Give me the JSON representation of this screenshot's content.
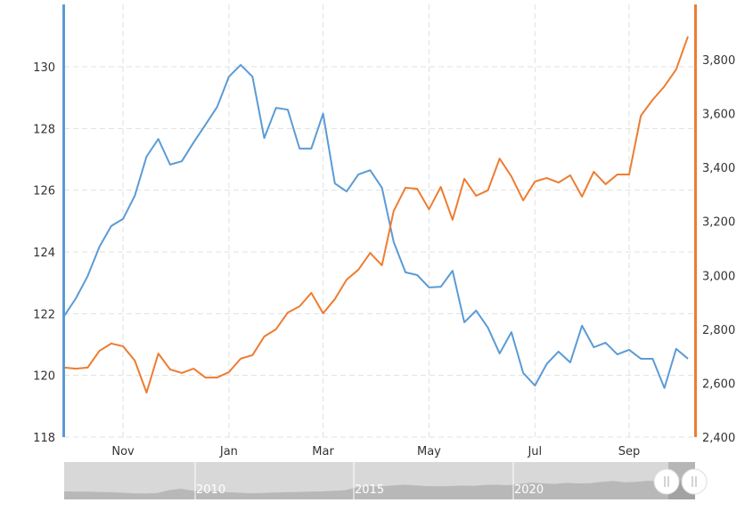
{
  "chart_data": {
    "type": "line",
    "title": "",
    "x_labels": [
      "Nov",
      "Jan",
      "Mar",
      "May",
      "Jul",
      "Sep"
    ],
    "x_label_index": [
      5,
      14,
      22,
      31,
      40,
      48
    ],
    "left_axis": {
      "ylim": [
        118,
        131.5
      ],
      "ticks": [
        "118",
        "120",
        "122",
        "124",
        "126",
        "128",
        "130"
      ],
      "tick_values": [
        118,
        120,
        122,
        124,
        126,
        128,
        130
      ],
      "color": "#5b9bd5"
    },
    "right_axis": {
      "ylim": [
        2400,
        3950
      ],
      "ticks": [
        "2,400",
        "2,600",
        "2,800",
        "3,000",
        "3,200",
        "3,400",
        "3,600",
        "3,800"
      ],
      "tick_values": [
        2400,
        2600,
        2800,
        3000,
        3200,
        3400,
        3600,
        3800
      ],
      "color": "#ed7d31"
    },
    "grid": true,
    "series": [
      {
        "name": "blue",
        "axis": "left",
        "color": "#5b9bd5",
        "values": [
          121.92,
          122.5,
          123.22,
          124.17,
          124.84,
          125.07,
          125.82,
          127.09,
          127.66,
          126.83,
          126.94,
          127.55,
          128.12,
          128.7,
          129.68,
          130.06,
          129.68,
          127.69,
          128.67,
          128.61,
          127.35,
          127.35,
          128.48,
          126.22,
          125.96,
          126.51,
          126.65,
          126.08,
          124.32,
          123.34,
          123.25,
          122.85,
          122.87,
          123.39,
          121.72,
          122.1,
          121.55,
          120.71,
          121.4,
          120.08,
          119.67,
          120.37,
          120.77,
          120.42,
          121.61,
          120.91,
          121.06,
          120.68,
          120.83,
          120.54,
          120.54,
          119.59,
          120.86,
          120.54
        ]
      },
      {
        "name": "orange",
        "axis": "right",
        "color": "#ed7d31",
        "values": [
          2658,
          2654,
          2658,
          2720,
          2747,
          2737,
          2684,
          2565,
          2710,
          2651,
          2638,
          2654,
          2621,
          2621,
          2641,
          2691,
          2704,
          2773,
          2800,
          2862,
          2885,
          2935,
          2859,
          2912,
          2984,
          3021,
          3083,
          3037,
          3239,
          3325,
          3321,
          3245,
          3328,
          3206,
          3358,
          3295,
          3315,
          3433,
          3367,
          3278,
          3348,
          3361,
          3344,
          3371,
          3292,
          3384,
          3338,
          3374,
          3374,
          3592,
          3651,
          3701,
          3764,
          3886
        ]
      }
    ],
    "navigator": {
      "year_labels": [
        "2010",
        "2015",
        "2020"
      ],
      "values": [
        30,
        29,
        29,
        28,
        27,
        25,
        23,
        22,
        24,
        35,
        40,
        33,
        30,
        31,
        27,
        25,
        23,
        24,
        26,
        27,
        28,
        29,
        30,
        32,
        34,
        45,
        50,
        48,
        52,
        55,
        53,
        50,
        49,
        50,
        52,
        51,
        54,
        55,
        53,
        58,
        63,
        60,
        58,
        62,
        60,
        61,
        66,
        69,
        64,
        66,
        70,
        68,
        72,
        70,
        73
      ]
    }
  }
}
